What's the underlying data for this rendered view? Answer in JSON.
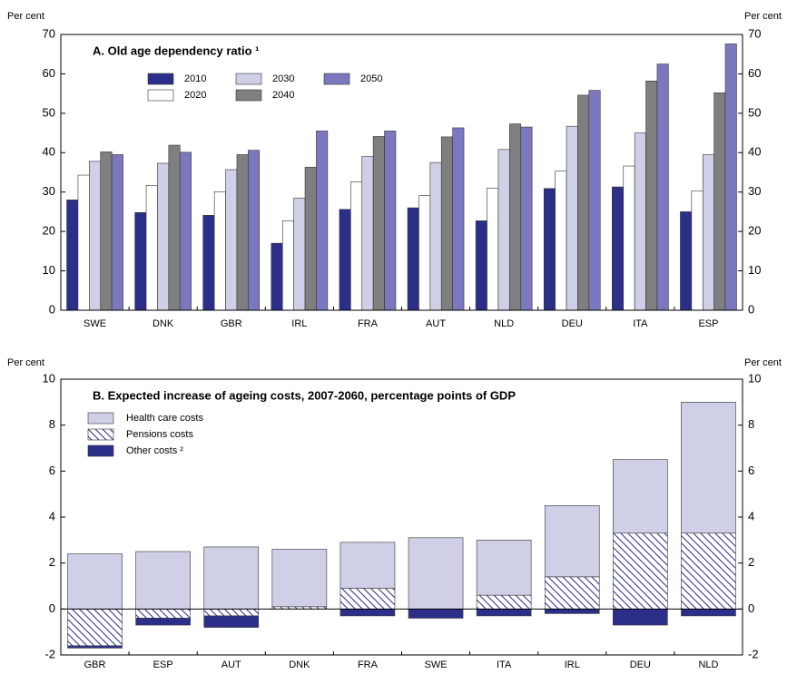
{
  "chart_data": [
    {
      "type": "bar",
      "title": "A. Old age dependency ratio ¹",
      "y_label": "Per cent",
      "categories": [
        "SWE",
        "DNK",
        "GBR",
        "IRL",
        "FRA",
        "AUT",
        "NLD",
        "DEU",
        "ITA",
        "ESP"
      ],
      "series": [
        {
          "name": "2010",
          "color": "#2b2f8a",
          "values": [
            28,
            24.8,
            24.1,
            17,
            25.6,
            26,
            22.7,
            30.9,
            31.3,
            25
          ]
        },
        {
          "name": "2020",
          "color": "#ffffff",
          "values": [
            34.3,
            31.7,
            30.1,
            22.7,
            32.6,
            29.1,
            31,
            35.3,
            36.6,
            30.3
          ]
        },
        {
          "name": "2030",
          "color": "#cfcfe8",
          "values": [
            37.8,
            37.3,
            35.7,
            28.5,
            39,
            37.5,
            40.8,
            46.7,
            45,
            39.5
          ]
        },
        {
          "name": "2040",
          "color": "#7f7f7f",
          "values": [
            40.2,
            41.9,
            39.5,
            36.3,
            44.1,
            44,
            47.3,
            54.6,
            58.2,
            55.2
          ]
        },
        {
          "name": "2050",
          "color": "#7b78c0",
          "values": [
            39.5,
            40.1,
            40.6,
            45.5,
            45.5,
            46.3,
            46.5,
            55.8,
            62.5,
            67.6
          ]
        }
      ],
      "ylim": [
        0,
        70
      ],
      "yticks": [
        0,
        10,
        20,
        30,
        40,
        50,
        60,
        70
      ]
    },
    {
      "type": "stacked_bar",
      "title": "B. Expected increase of ageing costs, 2007-2060, percentage points of GDP",
      "y_label": "Per cent",
      "categories": [
        "GBR",
        "ESP",
        "AUT",
        "DNK",
        "FRA",
        "SWE",
        "ITA",
        "IRL",
        "DEU",
        "NLD"
      ],
      "series": [
        {
          "name": "Health care costs",
          "color": "#cfcfe8",
          "values": [
            2.4,
            2.5,
            2.7,
            2.5,
            2.0,
            3.1,
            2.4,
            3.1,
            3.2,
            5.7
          ]
        },
        {
          "name": "Pensions costs",
          "color": "#2b2f8a",
          "hatch": true,
          "values": [
            -1.6,
            -0.4,
            -0.3,
            0.1,
            0.9,
            0,
            0.6,
            1.4,
            3.3,
            3.3
          ]
        },
        {
          "name": "Other costs ²",
          "color": "#2b2f8a",
          "values": [
            -0.1,
            -0.3,
            -0.5,
            0,
            -0.3,
            -0.4,
            -0.3,
            -0.2,
            -0.7,
            -0.3
          ]
        }
      ],
      "ylim": [
        -2,
        10
      ],
      "yticks": [
        -2,
        0,
        2,
        4,
        6,
        8,
        10
      ]
    }
  ]
}
